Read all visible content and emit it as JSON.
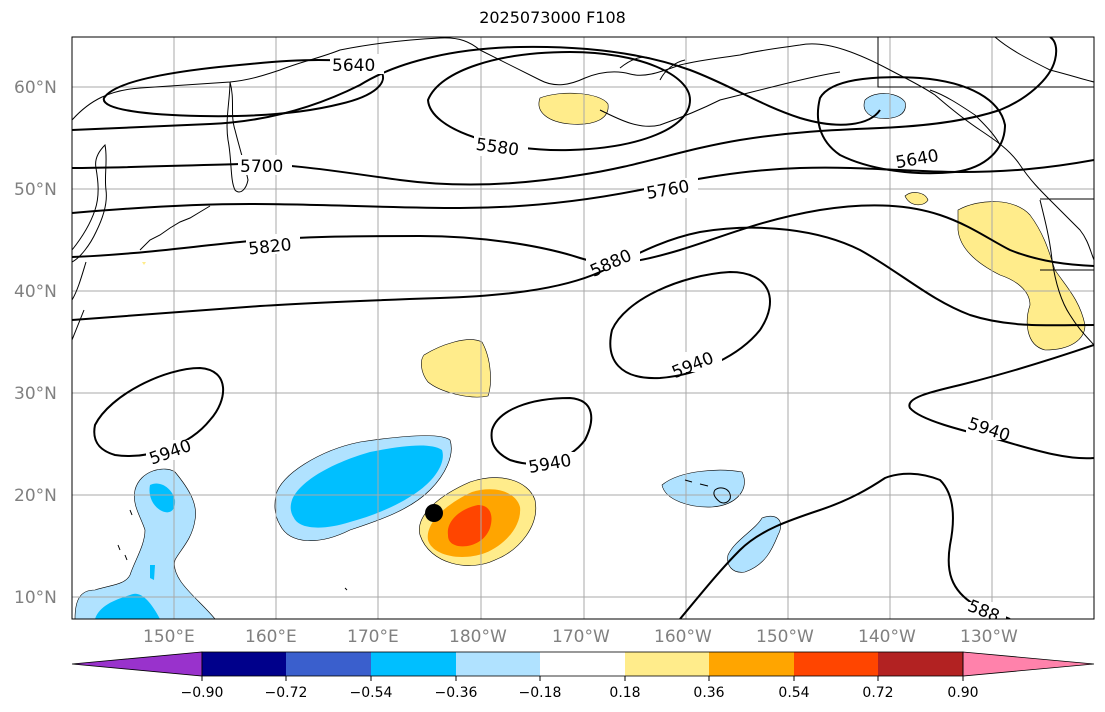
{
  "title": "2025073000 F108",
  "lat_labels": [
    "60°N",
    "50°N",
    "40°N",
    "30°N",
    "20°N",
    "10°N"
  ],
  "lon_labels": [
    "150°E",
    "160°E",
    "170°E",
    "180°W",
    "170°W",
    "160°W",
    "150°W",
    "140°W",
    "130°W"
  ],
  "contour_labels": [
    "5640",
    "5580",
    "5640",
    "5700",
    "5760",
    "5820",
    "5880",
    "5940",
    "5940",
    "5940",
    "5940",
    "588"
  ],
  "colorbar": {
    "ticks": [
      "−0.90",
      "−0.72",
      "−0.54",
      "−0.36",
      "−0.18",
      "0.18",
      "0.36",
      "0.54",
      "0.72",
      "0.90"
    ],
    "colors": [
      "#9932cc",
      "#00008b",
      "#3a5fcd",
      "#00bfff",
      "#b0e2ff",
      "#ffffff",
      "#ffec8b",
      "#ffa500",
      "#ff4500",
      "#b22222",
      "#ff82ab",
      "#ff82ab"
    ]
  },
  "shading_colors": {
    "pos1": "#ffec8b",
    "pos2": "#ffa500",
    "pos3": "#ff4500",
    "neg1": "#b0e2ff",
    "neg2": "#00bfff"
  }
}
